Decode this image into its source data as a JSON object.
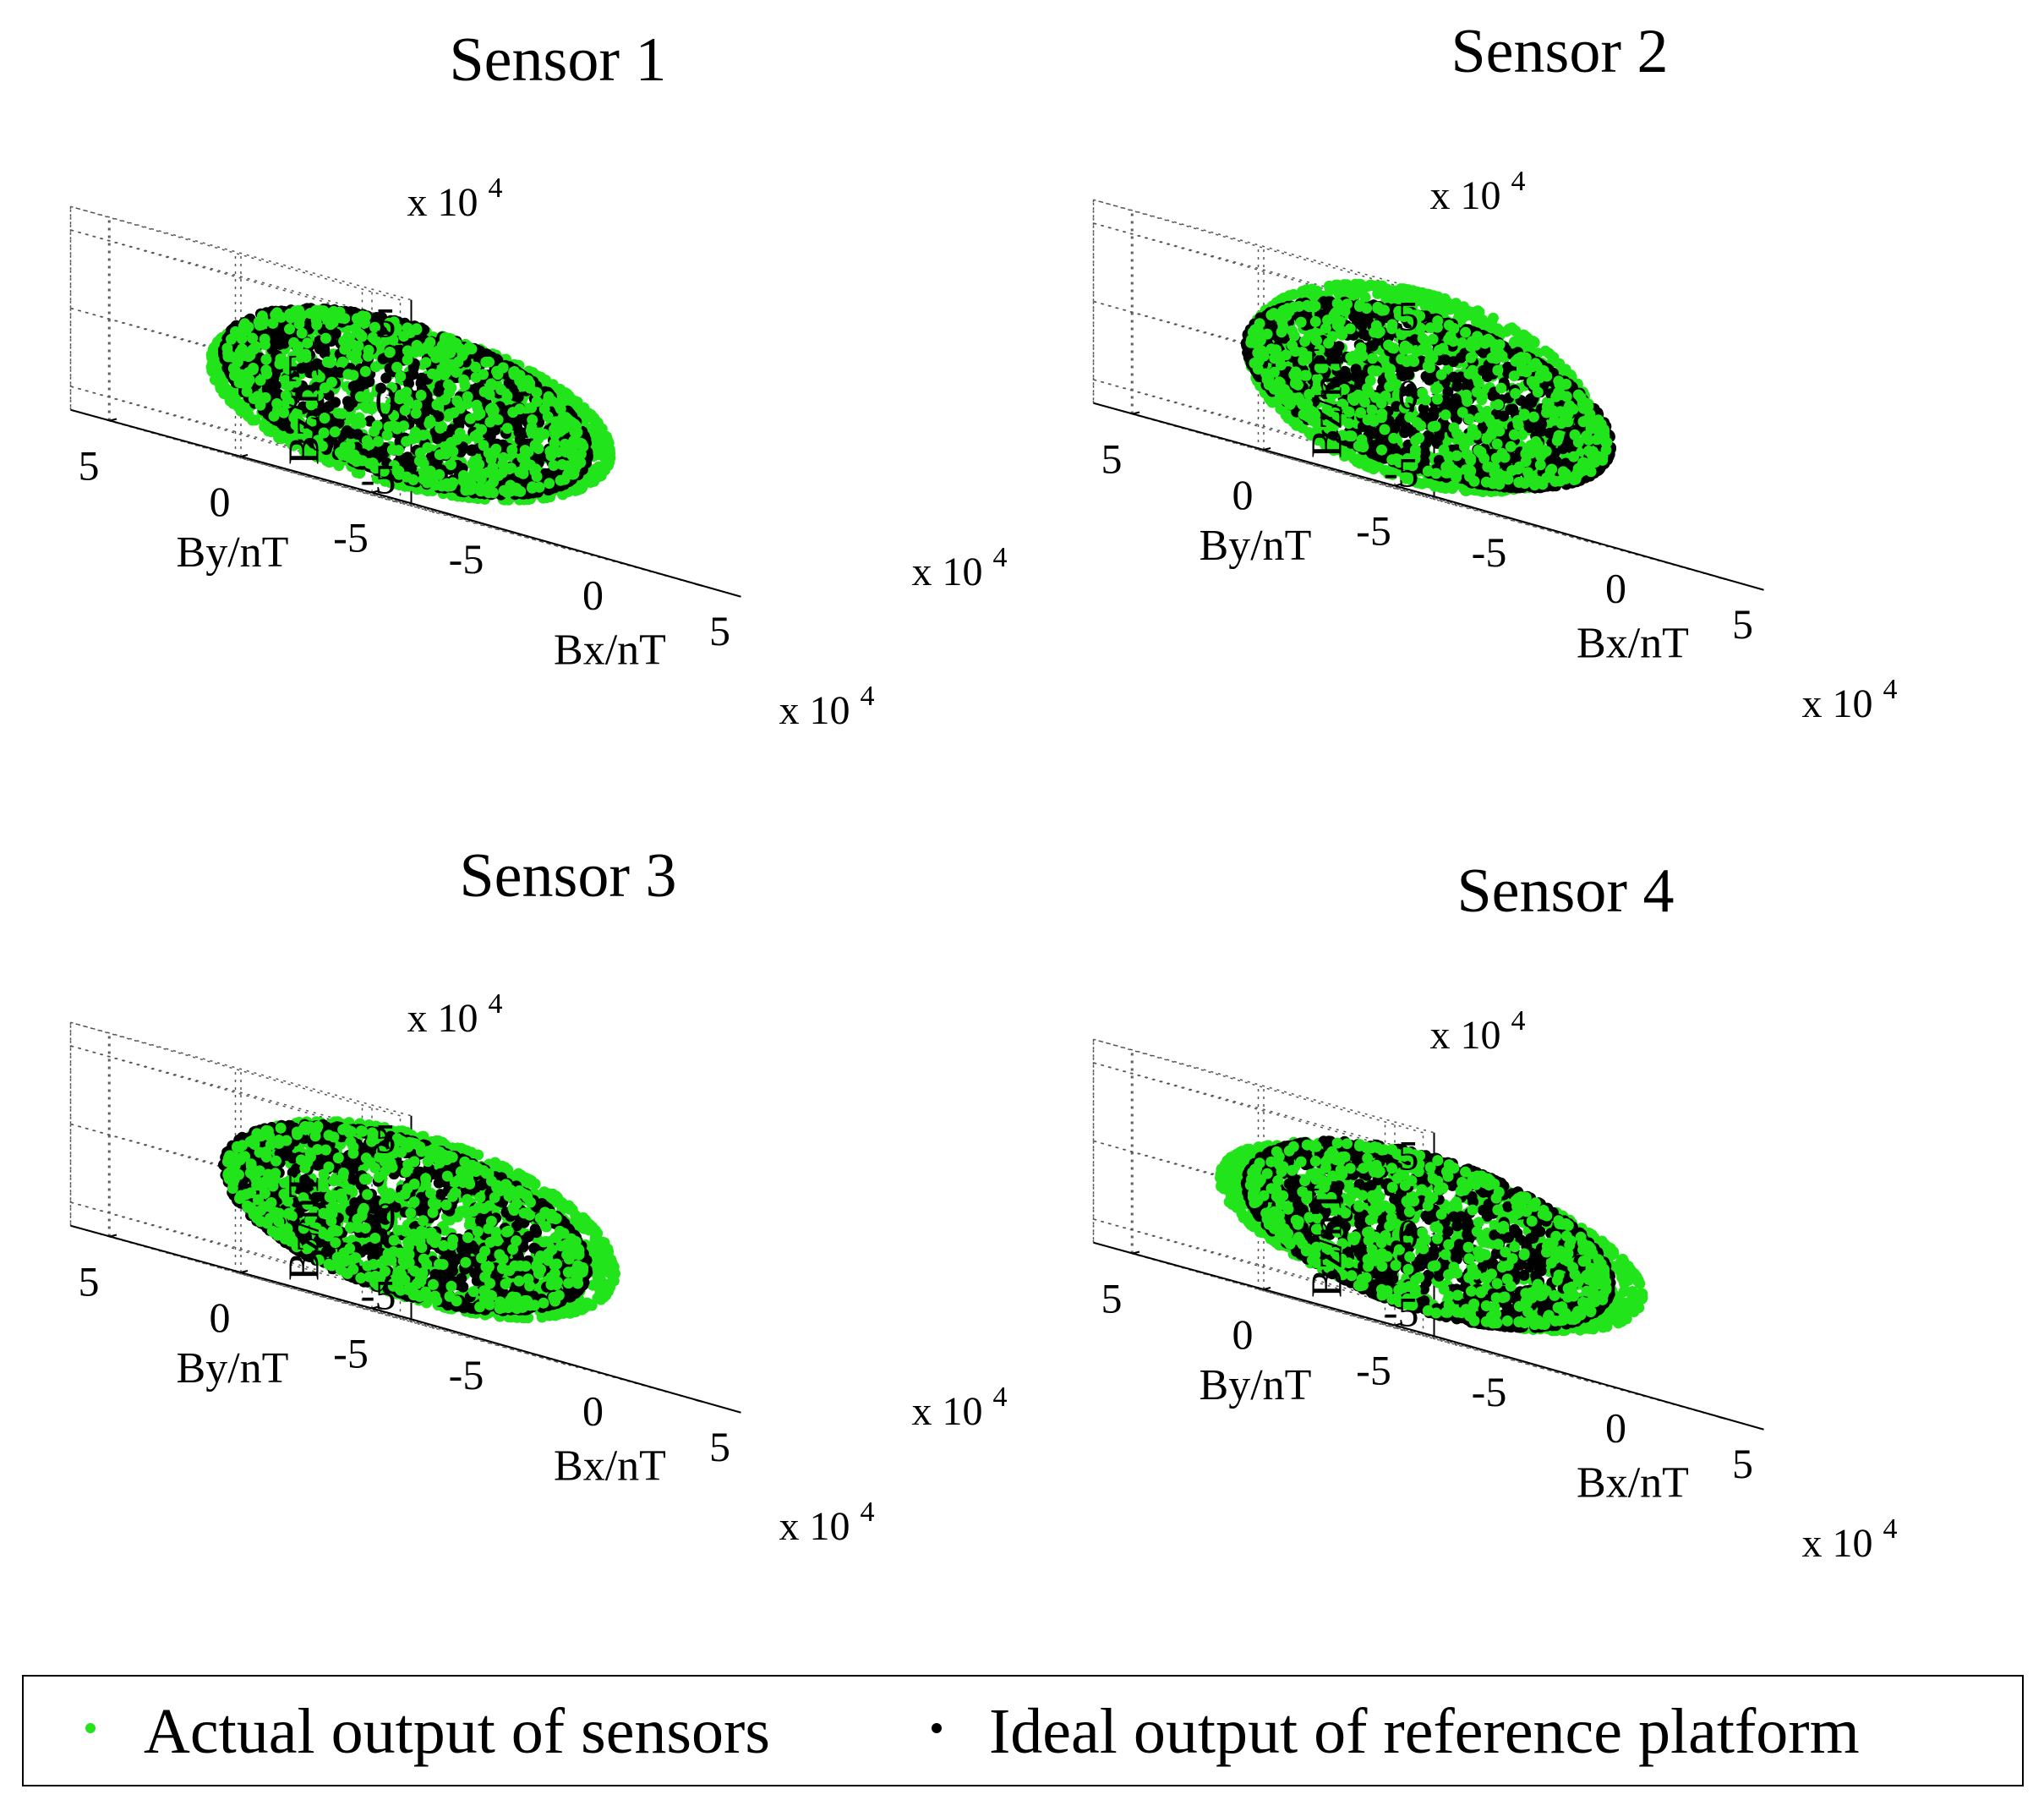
{
  "colors": {
    "actual": "#22e41a",
    "ideal": "#000000"
  },
  "chart_data": [
    {
      "type": "scatter",
      "title": "Sensor 1",
      "xlabel": "Bx/nT",
      "ylabel": "By/nT",
      "zlabel": "Bz/nT",
      "exponent_label": "x 10",
      "exponent_power": "4",
      "xlim": [
        -5,
        5
      ],
      "ylim": [
        -5,
        5
      ],
      "zlim": [
        -5,
        5
      ],
      "x_ticks": [
        "-5",
        "0",
        "5"
      ],
      "y_ticks": [
        "-5",
        "0",
        "5"
      ],
      "z_ticks": [
        "-5",
        "0",
        "5"
      ],
      "grid": true,
      "series": [
        {
          "name": "Actual output of sensors",
          "shape": "ellipsoid",
          "radii": [
            6.0,
            5.2,
            4.9
          ],
          "center": [
            0.6,
            0.4,
            -0.3
          ],
          "tilt_deg": 28
        },
        {
          "name": "Ideal output of reference platform",
          "shape": "sphere",
          "radius": 5.0,
          "center": [
            0,
            0,
            0
          ]
        }
      ]
    },
    {
      "type": "scatter",
      "title": "Sensor 2",
      "xlabel": "Bx/nT",
      "ylabel": "By/nT",
      "zlabel": "Bz/nT",
      "exponent_label": "x 10",
      "exponent_power": "4",
      "xlim": [
        -5,
        5
      ],
      "ylim": [
        -5,
        5
      ],
      "zlim": [
        -5,
        5
      ],
      "x_ticks": [
        "-5",
        "0",
        "5"
      ],
      "y_ticks": [
        "-5",
        "0",
        "5"
      ],
      "z_ticks": [
        "-5",
        "0",
        "5"
      ],
      "grid": true,
      "series": [
        {
          "name": "Actual output of sensors",
          "shape": "ellipsoid",
          "radii": [
            4.6,
            4.8,
            6.2
          ],
          "center": [
            -0.2,
            0.1,
            0.3
          ],
          "tilt_deg": -12
        },
        {
          "name": "Ideal output of reference platform",
          "shape": "sphere",
          "radius": 5.0,
          "center": [
            0,
            0,
            0
          ]
        }
      ]
    },
    {
      "type": "scatter",
      "title": "Sensor 3",
      "xlabel": "Bx/nT",
      "ylabel": "By/nT",
      "zlabel": "Bz/nT",
      "exponent_label": "x 10",
      "exponent_power": "4",
      "xlim": [
        -5,
        5
      ],
      "ylim": [
        -5,
        5
      ],
      "zlim": [
        -5,
        5
      ],
      "x_ticks": [
        "-5",
        "0",
        "5"
      ],
      "y_ticks": [
        "-5",
        "0",
        "5"
      ],
      "z_ticks": [
        "-5",
        "0",
        "5"
      ],
      "grid": true,
      "series": [
        {
          "name": "Actual output of sensors",
          "shape": "ellipsoid",
          "radii": [
            5.4,
            5.1,
            5.3
          ],
          "center": [
            0.4,
            -0.3,
            0.2
          ],
          "tilt_deg": 10
        },
        {
          "name": "Ideal output of reference platform",
          "shape": "sphere",
          "radius": 5.0,
          "center": [
            0,
            0,
            0
          ]
        }
      ]
    },
    {
      "type": "scatter",
      "title": "Sensor 4",
      "xlabel": "Bx/nT",
      "ylabel": "By/nT",
      "zlabel": "Bz/nT",
      "exponent_label": "x 10",
      "exponent_power": "4",
      "xlim": [
        -5,
        5
      ],
      "ylim": [
        -5,
        5
      ],
      "zlim": [
        -5,
        5
      ],
      "x_ticks": [
        "-5",
        "0",
        "5"
      ],
      "y_ticks": [
        "-5",
        "0",
        "5"
      ],
      "z_ticks": [
        "-5",
        "0",
        "5"
      ],
      "grid": true,
      "series": [
        {
          "name": "Actual output of sensors",
          "shape": "ellipsoid",
          "radii": [
            6.0,
            5.6,
            4.7
          ],
          "center": [
            0.1,
            0.0,
            -0.1
          ],
          "tilt_deg": 0
        },
        {
          "name": "Ideal output of reference platform",
          "shape": "sphere",
          "radius": 5.0,
          "center": [
            0,
            0,
            0
          ]
        }
      ]
    }
  ],
  "legend": {
    "placement": "bottom",
    "items": [
      {
        "label": "Actual output of sensors",
        "color": "#22e41a"
      },
      {
        "label": "Ideal output of reference platform",
        "color": "#000000"
      }
    ]
  }
}
